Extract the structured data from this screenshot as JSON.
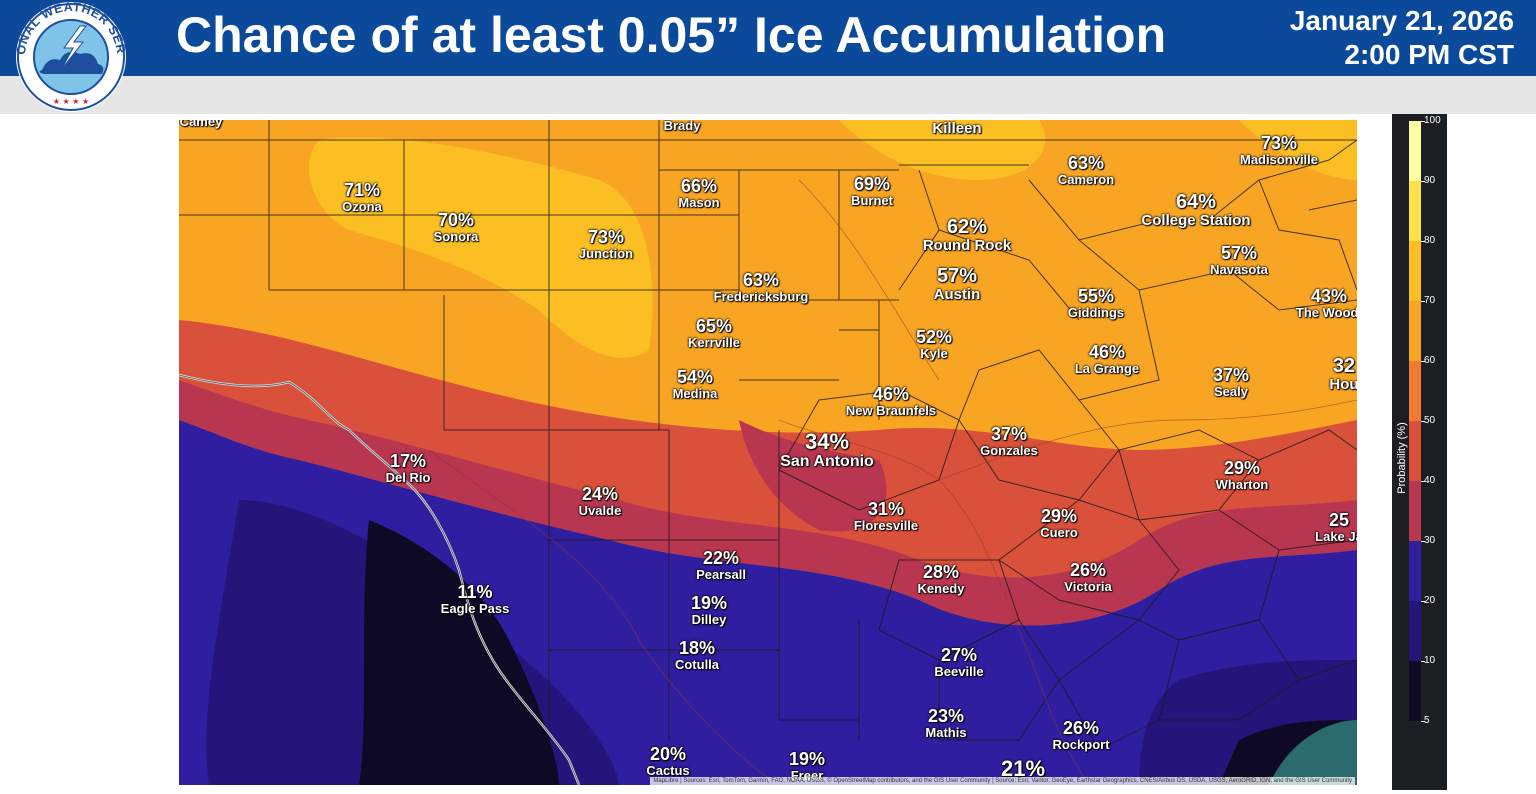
{
  "header": {
    "title": "Chance of at least 0.05” Ice Accumulation",
    "date": "January 21, 2026",
    "time": "2:00 PM CST"
  },
  "logo": {
    "text": "NATIONAL WEATHER SERVICE",
    "colors": {
      "ring": "#1d4f9e",
      "inner": "#7fc4e8",
      "bolt": "#ffffff",
      "star": "#cc1f2f"
    }
  },
  "cities": [
    {
      "name": "Camey",
      "pct": ""
    },
    {
      "name": "Brady",
      "pct": ""
    },
    {
      "name": "Killeen",
      "pct": ""
    },
    {
      "name": "Madisonville",
      "pct": "73%"
    },
    {
      "name": "Ozona",
      "pct": "71%"
    },
    {
      "name": "Sonora",
      "pct": "70%"
    },
    {
      "name": "Mason",
      "pct": "66%"
    },
    {
      "name": "Burnet",
      "pct": "69%"
    },
    {
      "name": "Cameron",
      "pct": "63%"
    },
    {
      "name": "College Station",
      "pct": "64%"
    },
    {
      "name": "Junction",
      "pct": "73%"
    },
    {
      "name": "Round Rock",
      "pct": "62%"
    },
    {
      "name": "Navasota",
      "pct": "57%"
    },
    {
      "name": "Fredericksburg",
      "pct": "63%"
    },
    {
      "name": "Austin",
      "pct": "57%"
    },
    {
      "name": "Giddings",
      "pct": "55%"
    },
    {
      "name": "The Woodl",
      "pct": "43%"
    },
    {
      "name": "Kerrville",
      "pct": "65%"
    },
    {
      "name": "Kyle",
      "pct": "52%"
    },
    {
      "name": "La Grange",
      "pct": "46%"
    },
    {
      "name": "Hou",
      "pct": "32"
    },
    {
      "name": "Medina",
      "pct": "54%"
    },
    {
      "name": "Sealy",
      "pct": "37%"
    },
    {
      "name": "New Braunfels",
      "pct": "46%"
    },
    {
      "name": "San Antonio",
      "pct": "34%"
    },
    {
      "name": "Gonzales",
      "pct": "37%"
    },
    {
      "name": "Del Rio",
      "pct": "17%"
    },
    {
      "name": "Wharton",
      "pct": "29%"
    },
    {
      "name": "Uvalde",
      "pct": "24%"
    },
    {
      "name": "Floresville",
      "pct": "31%"
    },
    {
      "name": "Cuero",
      "pct": "29%"
    },
    {
      "name": "Lake Ja",
      "pct": "25"
    },
    {
      "name": "Pearsall",
      "pct": "22%"
    },
    {
      "name": "Kenedy",
      "pct": "28%"
    },
    {
      "name": "Victoria",
      "pct": "26%"
    },
    {
      "name": "Eagle Pass",
      "pct": "11%"
    },
    {
      "name": "Dilley",
      "pct": "19%"
    },
    {
      "name": "Cotulla",
      "pct": "18%"
    },
    {
      "name": "Beeville",
      "pct": "27%"
    },
    {
      "name": "Mathis",
      "pct": "23%"
    },
    {
      "name": "Rockport",
      "pct": "26%"
    },
    {
      "name": "Cactus",
      "pct": "20%"
    },
    {
      "name": "Freer",
      "pct": "19%"
    },
    {
      "name": "",
      "pct": "21%"
    }
  ],
  "attribution": "MapLibre | Sources: Esri, TomTom, Garmin, FAO, NOAA, USGS, © OpenStreetMap contributors, and the GIS User Community | Source: Esri, Vantor, GeoEye, Earthstar Geographics, CNES/Airbus DS, USDA, USGS, AeroGRID, IGN, and the GIS User Community",
  "legend": {
    "title": "Probability (%)",
    "ticks": [
      100,
      90,
      80,
      70,
      60,
      50,
      40,
      30,
      20,
      10,
      5
    ],
    "colors": {
      "100": "#fcffa4",
      "90": "#fbe14a",
      "80": "#fbbf24",
      "70": "#f9a524",
      "60": "#f17c31",
      "50": "#d9513b",
      "40": "#b83650",
      "30": "#2f1fa0",
      "20": "#25157a",
      "10": "#0e0a26"
    }
  }
}
